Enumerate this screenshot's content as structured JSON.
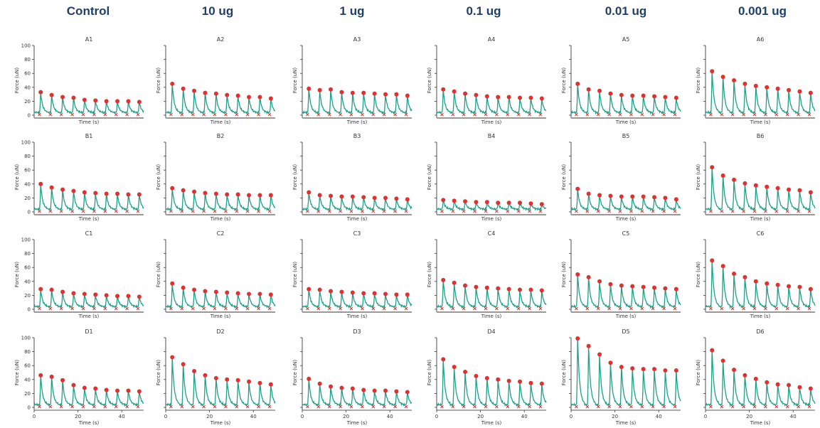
{
  "column_headers": [
    "Control",
    "10 ug",
    "1 ug",
    "0.1 ug",
    "0.01 ug",
    "0.001 ug"
  ],
  "colors": {
    "trace": "#1aa187",
    "peak_marker": "#e03030",
    "baseline_marker": "#e03030",
    "header": "#1f3f66"
  },
  "chart_data": {
    "type": "line",
    "xlabel": "Time (s)",
    "ylabel": "Force (uN)",
    "ylim": [
      0,
      100
    ],
    "yticks": [
      0,
      20,
      40,
      60,
      80,
      100
    ],
    "xlim": [
      0,
      50
    ],
    "xticks": [
      0,
      20,
      40
    ],
    "beat_times": [
      3,
      8,
      13,
      18,
      23,
      28,
      33,
      38,
      43,
      48
    ],
    "panels": [
      {
        "title": "A1",
        "peaks": [
          33,
          29,
          26,
          25,
          22,
          21,
          20,
          20,
          20,
          19
        ]
      },
      {
        "title": "A2",
        "peaks": [
          45,
          38,
          35,
          32,
          31,
          29,
          28,
          26,
          26,
          24
        ]
      },
      {
        "title": "A3",
        "peaks": [
          38,
          36,
          37,
          33,
          32,
          32,
          31,
          30,
          30,
          28
        ]
      },
      {
        "title": "A4",
        "peaks": [
          37,
          34,
          31,
          29,
          27,
          26,
          26,
          25,
          25,
          24
        ]
      },
      {
        "title": "A5",
        "peaks": [
          45,
          37,
          35,
          31,
          29,
          28,
          28,
          27,
          26,
          25
        ]
      },
      {
        "title": "A6",
        "peaks": [
          63,
          55,
          50,
          45,
          42,
          40,
          38,
          36,
          34,
          32
        ]
      },
      {
        "title": "B1",
        "peaks": [
          40,
          35,
          32,
          30,
          28,
          27,
          26,
          26,
          25,
          25
        ]
      },
      {
        "title": "B2",
        "peaks": [
          34,
          31,
          29,
          27,
          26,
          25,
          25,
          24,
          24,
          24
        ]
      },
      {
        "title": "B3",
        "peaks": [
          28,
          24,
          23,
          22,
          22,
          21,
          20,
          20,
          19,
          18
        ]
      },
      {
        "title": "B4",
        "peaks": [
          17,
          16,
          15,
          14,
          14,
          13,
          13,
          13,
          12,
          11
        ]
      },
      {
        "title": "B5",
        "peaks": [
          33,
          26,
          24,
          23,
          22,
          22,
          22,
          21,
          20,
          18
        ]
      },
      {
        "title": "B6",
        "peaks": [
          64,
          52,
          46,
          41,
          38,
          36,
          34,
          32,
          31,
          28
        ]
      },
      {
        "title": "C1",
        "peaks": [
          29,
          28,
          25,
          23,
          22,
          21,
          20,
          19,
          19,
          18
        ]
      },
      {
        "title": "C2",
        "peaks": [
          37,
          31,
          28,
          26,
          25,
          24,
          23,
          22,
          22,
          21
        ]
      },
      {
        "title": "C3",
        "peaks": [
          29,
          28,
          26,
          25,
          24,
          23,
          23,
          22,
          21,
          21
        ]
      },
      {
        "title": "C4",
        "peaks": [
          42,
          38,
          34,
          32,
          31,
          30,
          29,
          28,
          28,
          27
        ]
      },
      {
        "title": "C5",
        "peaks": [
          50,
          46,
          40,
          36,
          34,
          33,
          32,
          31,
          30,
          29
        ]
      },
      {
        "title": "C6",
        "peaks": [
          70,
          62,
          51,
          46,
          40,
          37,
          35,
          33,
          32,
          29
        ]
      },
      {
        "title": "D1",
        "peaks": [
          46,
          44,
          39,
          32,
          28,
          27,
          25,
          24,
          24,
          23
        ]
      },
      {
        "title": "D2",
        "peaks": [
          72,
          62,
          52,
          46,
          42,
          40,
          39,
          37,
          35,
          33
        ]
      },
      {
        "title": "D3",
        "peaks": [
          41,
          34,
          30,
          28,
          27,
          25,
          24,
          24,
          23,
          22
        ]
      },
      {
        "title": "D4",
        "peaks": [
          69,
          58,
          51,
          45,
          42,
          40,
          38,
          37,
          35,
          34
        ]
      },
      {
        "title": "D5",
        "peaks": [
          99,
          88,
          76,
          64,
          58,
          56,
          55,
          55,
          53,
          53
        ]
      },
      {
        "title": "D6",
        "peaks": [
          82,
          67,
          54,
          46,
          41,
          36,
          33,
          32,
          29,
          27
        ]
      }
    ]
  }
}
